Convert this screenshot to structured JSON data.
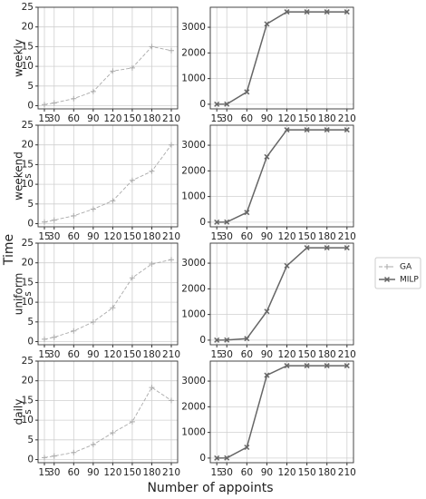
{
  "xlabel": "Number of appoints",
  "ylabel": "Time",
  "chart_data": [
    {
      "type": "line",
      "ylabel": "weekly",
      "yunit": "s",
      "x": [
        15,
        30,
        60,
        90,
        120,
        150,
        180,
        210
      ],
      "xlim": [
        5.25,
        219.75
      ],
      "xticks": [
        15,
        30,
        60,
        90,
        120,
        150,
        180,
        210
      ],
      "ylim": [
        -0.8,
        25
      ],
      "yticks": [
        0,
        5,
        10,
        15,
        20,
        25
      ],
      "grid": true,
      "series": [
        {
          "name": "GA",
          "color": "#aaaaaa",
          "linestyle": "dashed",
          "marker": "+",
          "values": [
            0.3,
            0.7,
            1.8,
            3.6,
            8.8,
            9.6,
            15.0,
            14.0
          ]
        }
      ]
    },
    {
      "type": "line",
      "x": [
        15,
        30,
        60,
        90,
        120,
        150,
        180,
        210
      ],
      "xlim": [
        5.25,
        219.75
      ],
      "xticks": [
        15,
        30,
        60,
        90,
        120,
        150,
        180,
        210
      ],
      "ylim": [
        -180,
        3780
      ],
      "yticks": [
        0,
        1000,
        2000,
        3000
      ],
      "grid": true,
      "series": [
        {
          "name": "MILP",
          "color": "#666666",
          "linestyle": "solid",
          "marker": "x",
          "values": [
            2,
            5,
            480,
            3130,
            3600,
            3600,
            3600,
            3600
          ]
        }
      ]
    },
    {
      "type": "line",
      "ylabel": "weekend",
      "yunit": "s",
      "x": [
        15,
        30,
        60,
        90,
        120,
        150,
        180,
        210
      ],
      "xlim": [
        5.25,
        219.75
      ],
      "xticks": [
        15,
        30,
        60,
        90,
        120,
        150,
        180,
        210
      ],
      "ylim": [
        -0.8,
        25
      ],
      "yticks": [
        0,
        5,
        10,
        15,
        20,
        25
      ],
      "grid": true,
      "series": [
        {
          "name": "GA",
          "color": "#aaaaaa",
          "linestyle": "dashed",
          "marker": "+",
          "values": [
            0.4,
            0.9,
            2.0,
            3.7,
            5.8,
            11.0,
            13.3,
            20.0
          ]
        }
      ]
    },
    {
      "type": "line",
      "x": [
        15,
        30,
        60,
        90,
        120,
        150,
        180,
        210
      ],
      "xlim": [
        5.25,
        219.75
      ],
      "xticks": [
        15,
        30,
        60,
        90,
        120,
        150,
        180,
        210
      ],
      "ylim": [
        -180,
        3780
      ],
      "yticks": [
        0,
        1000,
        2000,
        3000
      ],
      "grid": true,
      "series": [
        {
          "name": "MILP",
          "color": "#666666",
          "linestyle": "solid",
          "marker": "x",
          "values": [
            2,
            5,
            380,
            2550,
            3600,
            3600,
            3600,
            3600
          ]
        }
      ]
    },
    {
      "type": "line",
      "ylabel": "uniform",
      "yunit": "s",
      "x": [
        15,
        30,
        60,
        90,
        120,
        150,
        180,
        210
      ],
      "xlim": [
        5.25,
        219.75
      ],
      "xticks": [
        15,
        30,
        60,
        90,
        120,
        150,
        180,
        210
      ],
      "ylim": [
        -0.8,
        25
      ],
      "yticks": [
        0,
        5,
        10,
        15,
        20,
        25
      ],
      "grid": true,
      "series": [
        {
          "name": "GA",
          "color": "#aaaaaa",
          "linestyle": "dashed",
          "marker": "+",
          "values": [
            0.6,
            1.1,
            2.7,
            5.0,
            8.6,
            16.2,
            19.7,
            20.8
          ]
        }
      ]
    },
    {
      "type": "line",
      "x": [
        15,
        30,
        60,
        90,
        120,
        150,
        180,
        210
      ],
      "xlim": [
        5.25,
        219.75
      ],
      "xticks": [
        15,
        30,
        60,
        90,
        120,
        150,
        180,
        210
      ],
      "ylim": [
        -180,
        3780
      ],
      "yticks": [
        0,
        1000,
        2000,
        3000
      ],
      "grid": true,
      "series": [
        {
          "name": "MILP",
          "color": "#666666",
          "linestyle": "solid",
          "marker": "x",
          "values": [
            2,
            5,
            60,
            1120,
            2900,
            3600,
            3600,
            3600
          ]
        }
      ]
    },
    {
      "type": "line",
      "ylabel": "daily",
      "yunit": "s",
      "x": [
        15,
        30,
        60,
        90,
        120,
        150,
        180,
        210
      ],
      "xlim": [
        5.25,
        219.75
      ],
      "xticks": [
        15,
        30,
        60,
        90,
        120,
        150,
        180,
        210
      ],
      "ylim": [
        -0.8,
        25
      ],
      "yticks": [
        0,
        5,
        10,
        15,
        20,
        25
      ],
      "grid": true,
      "series": [
        {
          "name": "GA",
          "color": "#aaaaaa",
          "linestyle": "dashed",
          "marker": "+",
          "values": [
            0.5,
            0.9,
            1.8,
            3.8,
            6.8,
            9.6,
            18.3,
            15.0
          ]
        }
      ]
    },
    {
      "type": "line",
      "x": [
        15,
        30,
        60,
        90,
        120,
        150,
        180,
        210
      ],
      "xlim": [
        5.25,
        219.75
      ],
      "xticks": [
        15,
        30,
        60,
        90,
        120,
        150,
        180,
        210
      ],
      "ylim": [
        -180,
        3780
      ],
      "yticks": [
        0,
        1000,
        2000,
        3000
      ],
      "grid": true,
      "series": [
        {
          "name": "MILP",
          "color": "#666666",
          "linestyle": "solid",
          "marker": "x",
          "values": [
            2,
            5,
            420,
            3230,
            3600,
            3600,
            3600,
            3600
          ]
        }
      ]
    }
  ]
}
